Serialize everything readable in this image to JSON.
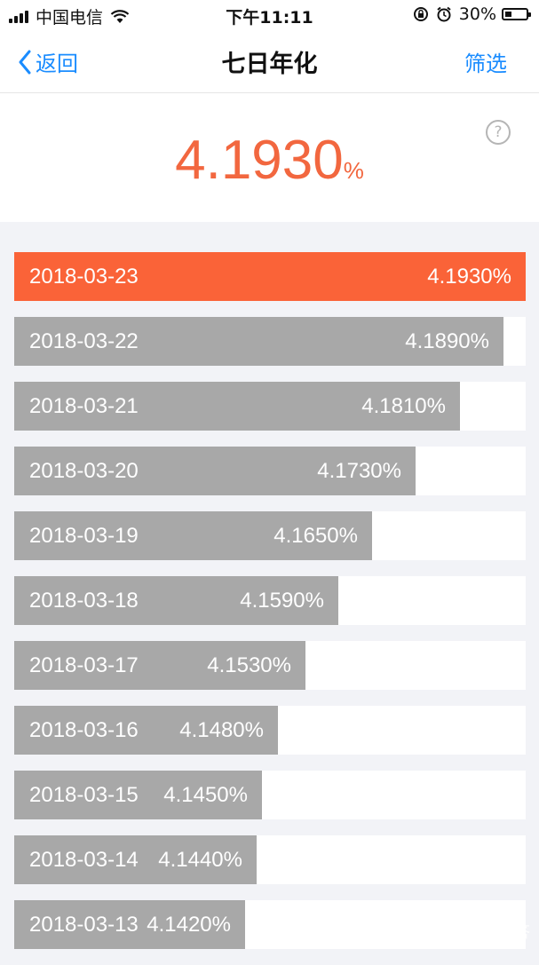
{
  "status_bar": {
    "carrier": "中国电信",
    "time": "下午11:11",
    "battery": "30%",
    "battery_level": 0.3
  },
  "nav": {
    "back_label": "返回",
    "title": "七日年化",
    "filter_label": "筛选"
  },
  "header": {
    "rate_value": "4.1930",
    "rate_unit": "%",
    "help_symbol": "?"
  },
  "colors": {
    "accent": "#f2673f",
    "active_bar": "#fa6338",
    "inactive_bar": "#a8a8a8",
    "link": "#1a8cff"
  },
  "rows": [
    {
      "date": "2018-03-23",
      "rate": "4.1930%",
      "value": 4.193,
      "active": true
    },
    {
      "date": "2018-03-22",
      "rate": "4.1890%",
      "value": 4.189,
      "active": false
    },
    {
      "date": "2018-03-21",
      "rate": "4.1810%",
      "value": 4.181,
      "active": false
    },
    {
      "date": "2018-03-20",
      "rate": "4.1730%",
      "value": 4.173,
      "active": false
    },
    {
      "date": "2018-03-19",
      "rate": "4.1650%",
      "value": 4.165,
      "active": false
    },
    {
      "date": "2018-03-18",
      "rate": "4.1590%",
      "value": 4.159,
      "active": false
    },
    {
      "date": "2018-03-17",
      "rate": "4.1530%",
      "value": 4.153,
      "active": false
    },
    {
      "date": "2018-03-16",
      "rate": "4.1480%",
      "value": 4.148,
      "active": false
    },
    {
      "date": "2018-03-15",
      "rate": "4.1450%",
      "value": 4.145,
      "active": false
    },
    {
      "date": "2018-03-14",
      "rate": "4.1440%",
      "value": 4.144,
      "active": false
    },
    {
      "date": "2018-03-13",
      "rate": "4.1420%",
      "value": 4.142,
      "active": false
    }
  ],
  "watermark": "头条@问答",
  "icons": {
    "back": "chevron-left-icon",
    "help": "question-circle-icon",
    "wifi": "wifi-icon",
    "signal": "signal-icon",
    "battery": "battery-icon",
    "lock_rotation": "rotation-lock-icon",
    "alarm": "alarm-icon"
  }
}
